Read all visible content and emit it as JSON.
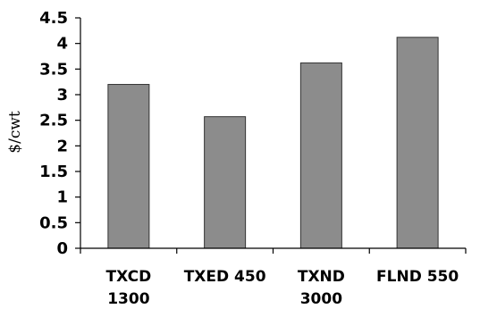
{
  "chart_data": {
    "type": "bar",
    "categories": [
      [
        "TXCD",
        "1300"
      ],
      [
        "TXED 450"
      ],
      [
        "TXND",
        "3000"
      ],
      [
        "FLND 550"
      ]
    ],
    "values": [
      3.2,
      2.57,
      3.62,
      4.12
    ],
    "ylabel": "$/cwt",
    "ylim": [
      0,
      4.5
    ],
    "yticks": [
      "0",
      "0.5",
      "1",
      "1.5",
      "2",
      "2.5",
      "3",
      "3.5",
      "4",
      "4.5"
    ],
    "grid": false,
    "legend": "none",
    "colors": {
      "bar_fill": "#8c8c8c",
      "bar_stroke": "#333333",
      "axis": "#000000"
    }
  }
}
